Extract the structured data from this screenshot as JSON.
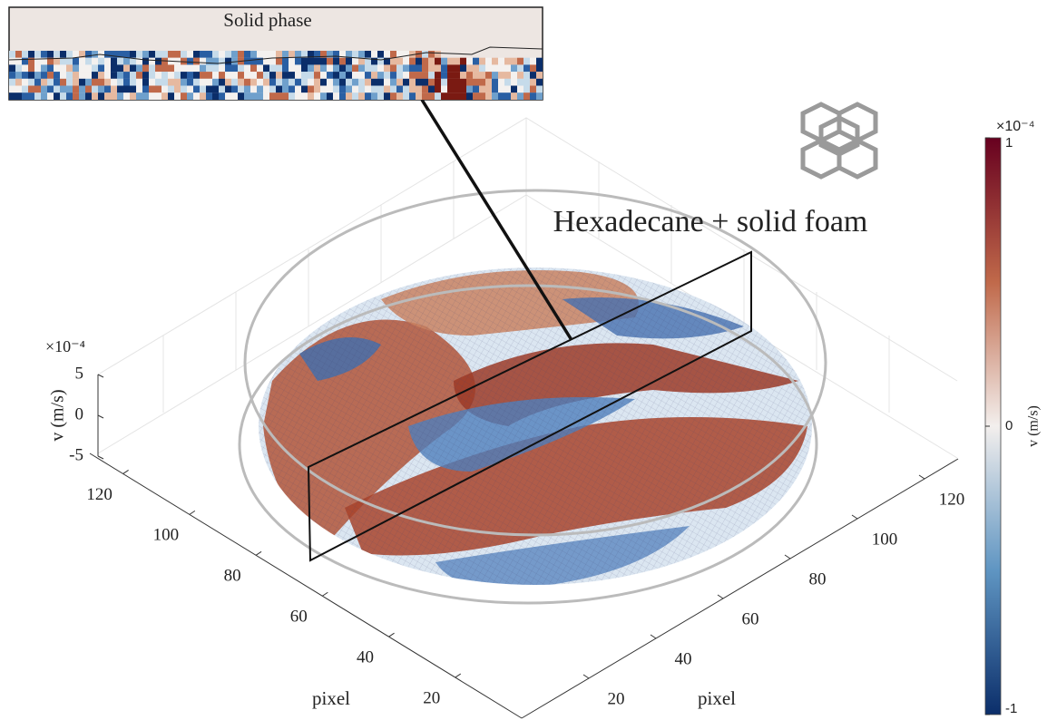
{
  "chart_data": {
    "type": "surface",
    "title": "Hexadecane + solid foam",
    "inset_title": "Solid phase",
    "xlabel": "pixel",
    "ylabel": "pixel",
    "zlabel": "v (m/s)",
    "z_exponent": "×10⁻⁴",
    "xlim": [
      0,
      130
    ],
    "xticks": [
      20,
      40,
      60,
      80,
      100,
      120
    ],
    "ylim": [
      0,
      130
    ],
    "yticks": [
      20,
      40,
      60,
      80,
      100,
      120
    ],
    "zlim": [
      -5,
      5
    ],
    "zticks": [
      -5,
      0,
      5
    ],
    "colorbar": {
      "label": "v (m/s)",
      "exponent": "×10⁻⁴",
      "lim": [
        -1,
        1
      ],
      "ticks": [
        -1,
        0,
        1
      ]
    }
  }
}
